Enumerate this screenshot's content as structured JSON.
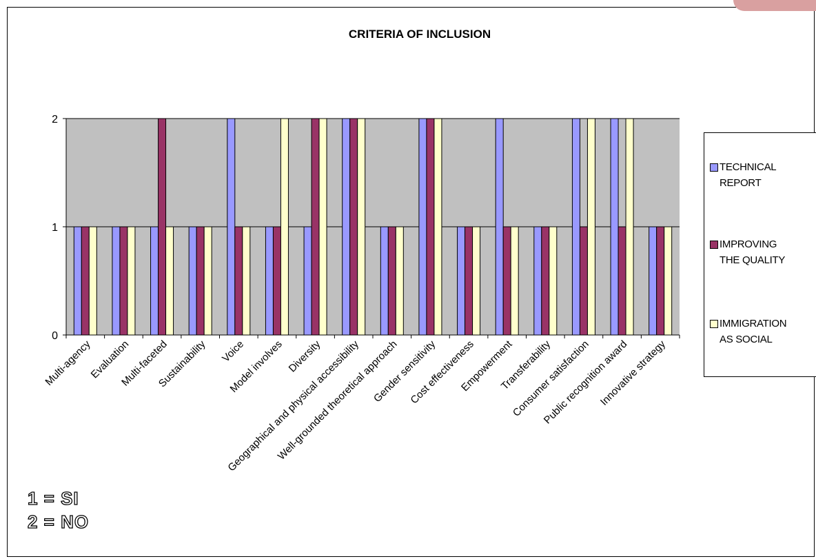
{
  "chart_data": {
    "type": "bar",
    "title": "CRITERIA OF INCLUSION",
    "xlabel": "",
    "ylabel": "",
    "ylim": [
      0,
      2
    ],
    "yticks": [
      0,
      1,
      2
    ],
    "grid": true,
    "legend_position": "right",
    "categories": [
      "Multi-agency",
      "Evaluation",
      "Multi-faceted",
      "Sustainability",
      "Voice",
      "Model involves",
      "Diversity",
      "Geographical and physical accessibility",
      "Well-grounded theoretical approach",
      "Gender sensitivity",
      "Cost effectiveness",
      "Empowerment",
      "Transferability",
      "Consumer satisfaction",
      "Public recognition award",
      "Innovative strategy"
    ],
    "series": [
      {
        "name": "TECHNICAL REPORT",
        "color": "#9999ff",
        "values": [
          1,
          1,
          1,
          1,
          2,
          1,
          1,
          2,
          1,
          2,
          1,
          2,
          1,
          2,
          2,
          1
        ]
      },
      {
        "name": "IMPROVING THE QUALITY",
        "color": "#993366",
        "values": [
          1,
          1,
          2,
          1,
          1,
          1,
          2,
          2,
          1,
          2,
          1,
          1,
          1,
          1,
          1,
          1
        ]
      },
      {
        "name": "IMMIGRATION AS SOCIAL",
        "color": "#ffffcc",
        "values": [
          1,
          1,
          1,
          1,
          1,
          2,
          2,
          2,
          1,
          2,
          1,
          1,
          1,
          2,
          2,
          1
        ]
      }
    ],
    "plot_background": "#c0c0c0",
    "annotations": [
      "1 = SI",
      "2 = NO"
    ]
  },
  "legend": {
    "items": [
      {
        "line1": "TECHNICAL",
        "line2": "REPORT",
        "color": "#9999ff"
      },
      {
        "line1": "IMPROVING",
        "line2": "THE QUALITY",
        "color": "#993366"
      },
      {
        "line1": "IMMIGRATION",
        "line2": "AS SOCIAL",
        "color": "#ffffcc"
      }
    ]
  },
  "key_note": {
    "line1": "1 = SI",
    "line2": "2 = NO"
  }
}
